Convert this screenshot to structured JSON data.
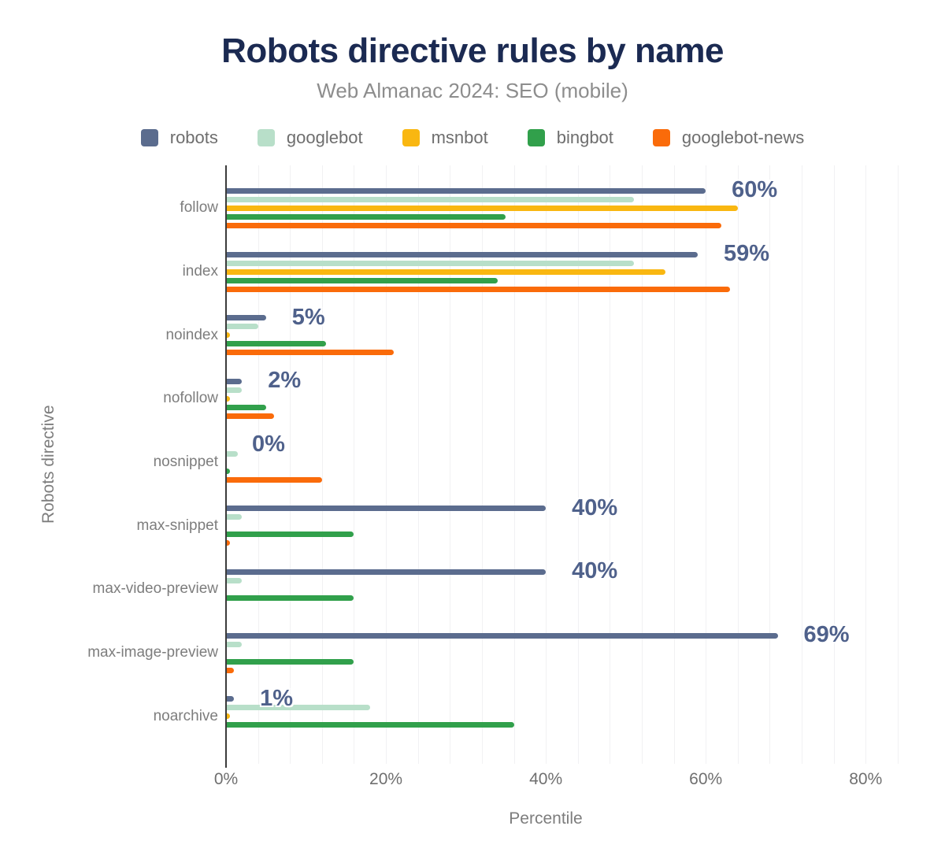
{
  "chart_data": {
    "type": "bar",
    "orientation": "horizontal",
    "title": "Robots directive rules by name",
    "subtitle": "Web Almanac 2024: SEO (mobile)",
    "xlabel": "Percentile",
    "ylabel": "Robots directive",
    "legend_position": "top",
    "grid": true,
    "grid_step": 4,
    "xlim": [
      0,
      85
    ],
    "xticks": [
      0,
      20,
      40,
      60,
      80
    ],
    "tick_suffix": "%",
    "categories": [
      "follow",
      "index",
      "noindex",
      "nofollow",
      "nosnippet",
      "max-snippet",
      "max-video-preview",
      "max-image-preview",
      "noarchive"
    ],
    "series": [
      {
        "name": "robots",
        "color": "#5b6c8e",
        "values": [
          60,
          59,
          5,
          2,
          0,
          40,
          40,
          69,
          1
        ]
      },
      {
        "name": "googlebot",
        "color": "#b8dfc9",
        "values": [
          51,
          51,
          4,
          2,
          1.5,
          2,
          2,
          2,
          18
        ]
      },
      {
        "name": "msnbot",
        "color": "#f9b711",
        "values": [
          64,
          55,
          0.5,
          0.5,
          0,
          0,
          0,
          0,
          0.5
        ]
      },
      {
        "name": "bingbot",
        "color": "#31a04b",
        "values": [
          35,
          34,
          12.5,
          5,
          0.5,
          16,
          16,
          16,
          36
        ]
      },
      {
        "name": "googlebot-news",
        "color": "#fa6b0a",
        "values": [
          62,
          63,
          21,
          6,
          12,
          0.5,
          0,
          1,
          0
        ]
      }
    ],
    "value_labels": [
      "60%",
      "59%",
      "5%",
      "2%",
      "0%",
      "40%",
      "40%",
      "69%",
      "1%"
    ],
    "colors": {
      "title": "#1b2a52",
      "subtitle": "#8d8d8d",
      "axis_line": "#3b3b3b",
      "gridline": "#f1f1f3",
      "value_label": "#4f618b",
      "tick_label": "#6f6f6f",
      "category_label": "#7d7d7d"
    }
  }
}
